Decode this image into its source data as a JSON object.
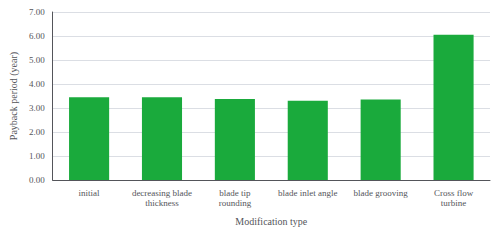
{
  "chart_data": {
    "type": "bar",
    "categories": [
      "initial",
      "decreasing blade\nthickness",
      "blade tip\nrounding",
      "blade inlet angle",
      "blade grooving",
      "Cross flow\nturbine"
    ],
    "values": [
      3.45,
      3.45,
      3.38,
      3.3,
      3.35,
      6.05
    ],
    "color": "#1aaa3c",
    "xlabel": "Modification type",
    "ylabel": "Payback period (year)",
    "ylim": [
      0.0,
      7.0
    ],
    "yticks": [
      {
        "value": 0,
        "label": "0.00"
      },
      {
        "value": 1,
        "label": "1.00"
      },
      {
        "value": 2,
        "label": "2.00"
      },
      {
        "value": 3,
        "label": "3.00"
      },
      {
        "value": 4,
        "label": "4.00"
      },
      {
        "value": 5,
        "label": "5.00"
      },
      {
        "value": 6,
        "label": "6.00"
      },
      {
        "value": 7,
        "label": "7.00"
      }
    ],
    "grid": true
  }
}
